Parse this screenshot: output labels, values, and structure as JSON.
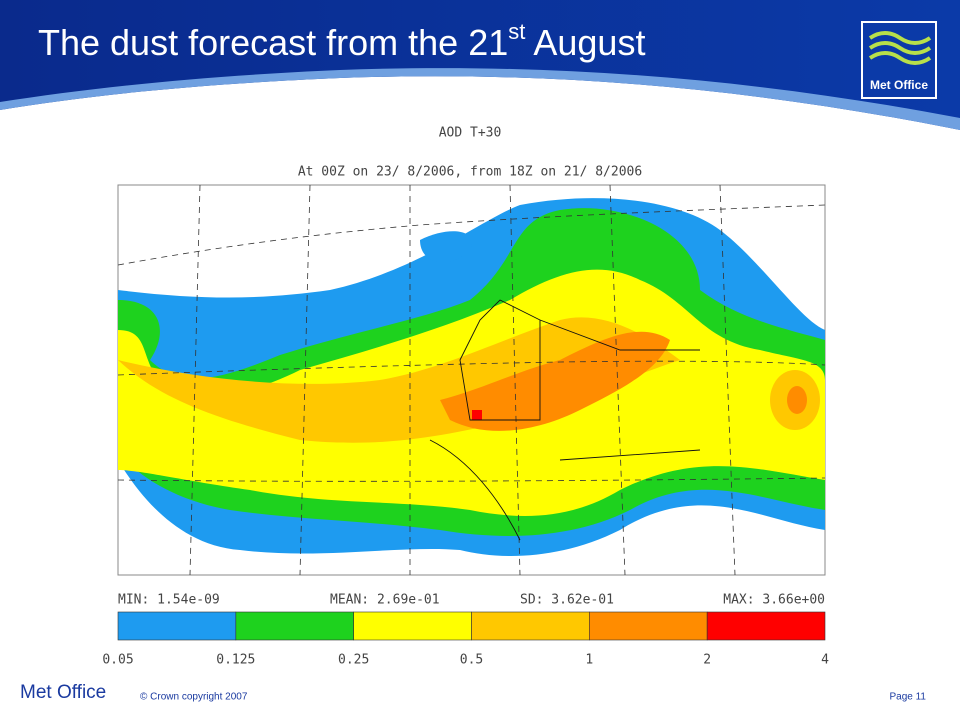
{
  "header": {
    "title": {
      "prefix": "The dust forecast from the 21",
      "sup": "st",
      "suffix": " August"
    },
    "logo": "Met Office"
  },
  "figure": {
    "title": "AOD T+30",
    "subtitle": "At 00Z on 23/ 8/2006, from 18Z on 21/ 8/2006",
    "stats": [
      "MIN:  1.54e-09",
      "MEAN:  2.69e-01",
      "SD:  3.62e-01",
      "MAX:  3.66e+00"
    ],
    "colorbar": {
      "labels": [
        "0.05",
        "0.125",
        "0.25",
        "0.5",
        "1",
        "2",
        "4"
      ],
      "colors": [
        "#1e9bf0",
        "#1ed21e",
        "#ffff00",
        "#ffc800",
        "#ff8c00",
        "#ff0000"
      ]
    }
  },
  "footer": {
    "brand": "Met Office",
    "copyright": "© Crown copyright 2007",
    "page": "Page 11"
  }
}
